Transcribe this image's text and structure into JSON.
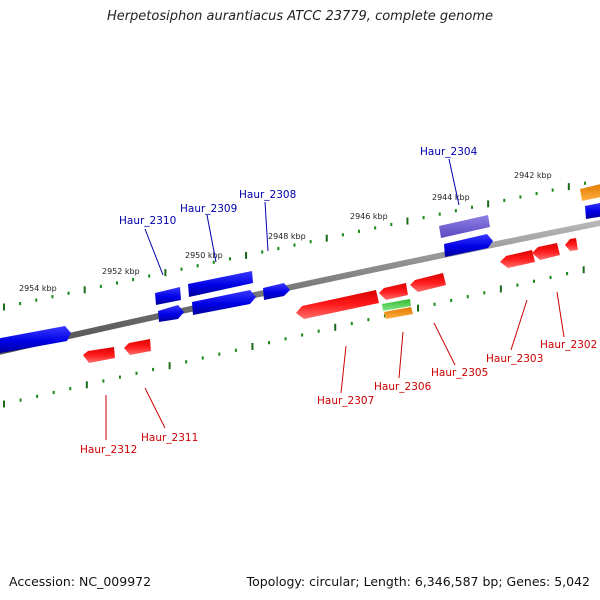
{
  "title": "Herpetosiphon aurantiacus ATCC 23779, complete genome",
  "footer": {
    "accession": "Accession: NC_009972",
    "summary": "Topology: circular; Length: 6,346,587 bp; Genes: 5,042"
  },
  "colors": {
    "backbone": "#808080",
    "forward_strand_gene": "#0a0af0",
    "reverse_strand_gene": "#f01010",
    "rna_gene": "#40c840",
    "pseudo_gene": "#f08c10",
    "selected_gene": "#7a6ad8",
    "tick_major": "#1a6a1a",
    "tick_minor": "#1a8a1a",
    "forward_label": "#0000aa",
    "reverse_label": "#cc0000"
  },
  "scale_labels": [
    "2954 kbp",
    "2952 kbp",
    "2950 kbp",
    "2948 kbp",
    "2946 kbp",
    "2944 kbp",
    "2942 kbp"
  ],
  "gene_labels": {
    "forward": [
      "Haur_2310",
      "Haur_2309",
      "Haur_2308",
      "Haur_2304"
    ],
    "reverse": [
      "Haur_2312",
      "Haur_2311",
      "Haur_2307",
      "Haur_2306",
      "Haur_2305",
      "Haur_2303",
      "Haur_2302"
    ]
  }
}
